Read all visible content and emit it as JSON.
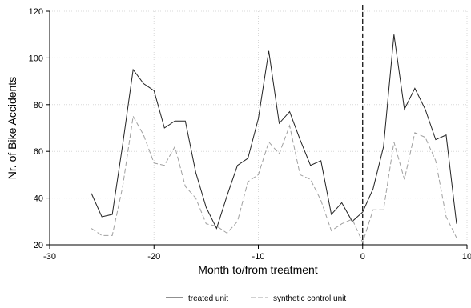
{
  "chart_data": {
    "type": "line",
    "xlabel": "Month to/from treatment",
    "ylabel": "Nr. of Bike Accidents",
    "xlim": [
      -30,
      10
    ],
    "ylim": [
      20,
      120
    ],
    "xticks": [
      -30,
      -20,
      -10,
      0,
      10
    ],
    "yticks": [
      20,
      40,
      60,
      80,
      100,
      120
    ],
    "grid": true,
    "legend_position": "bottom",
    "treatment_line_x": 0,
    "x": [
      -26,
      -25,
      -24,
      -23,
      -22,
      -21,
      -20,
      -19,
      -18,
      -17,
      -16,
      -15,
      -14,
      -13,
      -12,
      -11,
      -10,
      -9,
      -8,
      -7,
      -6,
      -5,
      -4,
      -3,
      -2,
      -1,
      0,
      1,
      2,
      3,
      4,
      5,
      6,
      7,
      8,
      9
    ],
    "series": [
      {
        "name": "treated unit",
        "style": "solid",
        "color": "#222222",
        "values": [
          42,
          32,
          33,
          63,
          95,
          89,
          86,
          70,
          73,
          73,
          51,
          36,
          27,
          41,
          54,
          57,
          74,
          103,
          72,
          77,
          65,
          54,
          56,
          33,
          38,
          30,
          34,
          44,
          62,
          110,
          78,
          87,
          78,
          65,
          67,
          29
        ]
      },
      {
        "name": "synthetic control unit",
        "style": "dashed",
        "color": "#a0a0a0",
        "values": [
          27,
          24,
          24,
          45,
          75,
          67,
          55,
          54,
          62,
          45,
          40,
          29,
          28,
          25,
          30,
          47,
          50,
          64,
          59,
          71,
          50,
          48,
          39,
          26,
          29,
          31,
          21,
          35,
          35,
          64,
          48,
          68,
          66,
          56,
          32,
          23
        ]
      }
    ]
  }
}
